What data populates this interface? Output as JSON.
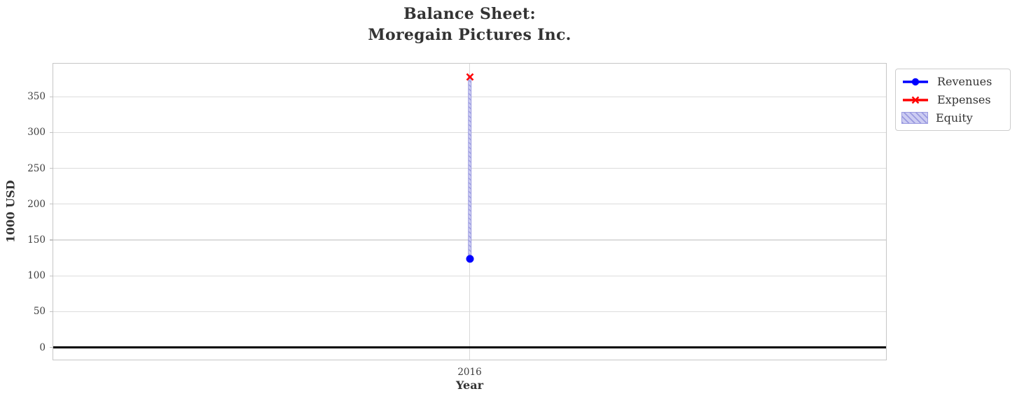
{
  "figure": {
    "title_line1": "Balance Sheet:",
    "title_line2": "Moregain Pictures Inc.",
    "background": "#ffffff",
    "title_color": "#333333"
  },
  "axes": {
    "ylabel": "1000 USD",
    "xlabel": "Year",
    "x_tick_label": "2016",
    "grid_color": "#dcdcdc",
    "border_color": "#c6c6c6",
    "tick_label_color": "#3d3d3d"
  },
  "chart_data": {
    "type": "mixed",
    "title": "Balance Sheet:\nMoregain Pictures Inc.",
    "xlabel": "Year",
    "ylabel": "1000 USD",
    "x": [
      2016
    ],
    "series": [
      {
        "name": "Revenues",
        "type": "line",
        "marker": "circle",
        "color": "#0000ff",
        "values": [
          124
        ]
      },
      {
        "name": "Expenses",
        "type": "line",
        "marker": "x",
        "color": "#ff0000",
        "values": [
          377
        ]
      },
      {
        "name": "Equity",
        "type": "bar",
        "facecolor": "#ccccf2",
        "hatch": "///",
        "hatch_color": "#9a9ae0",
        "bottom": [
          124
        ],
        "values": [
          253
        ]
      }
    ],
    "ylim": [
      -19,
      396
    ],
    "yticks": [
      0,
      50,
      100,
      150,
      200,
      250,
      300,
      350
    ],
    "xticks": [
      "2016"
    ],
    "grid": true,
    "zero_line": true,
    "legend_position": "outside upper right"
  }
}
